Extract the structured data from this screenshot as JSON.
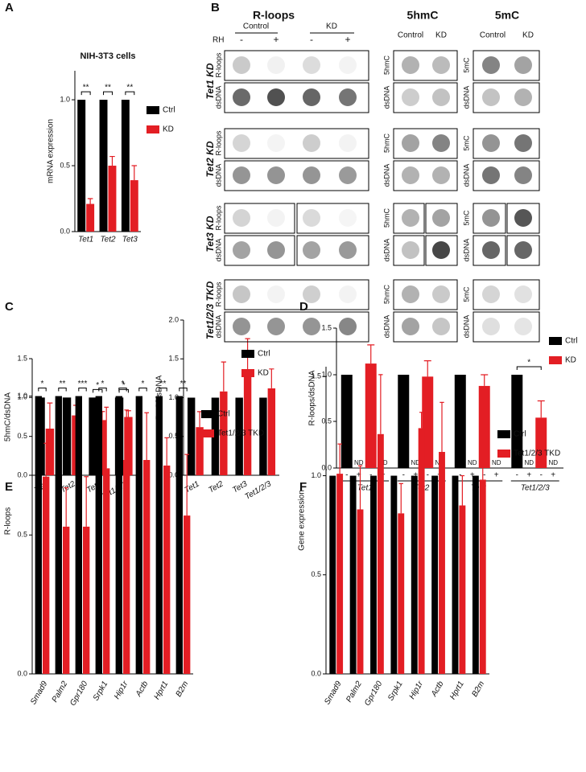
{
  "panel_labels": [
    "A",
    "B",
    "C",
    "D",
    "E",
    "F"
  ],
  "chart_data": [
    {
      "type": "bar",
      "title": "NIH-3T3 cells",
      "y_label": "mRNA expression",
      "categories": [
        "Tet1",
        "Tet2",
        "Tet3"
      ],
      "series": [
        {
          "name": "Ctrl",
          "color": "#000000",
          "values": [
            1,
            1,
            1
          ]
        },
        {
          "name": "KD",
          "color": "#e31e24",
          "values": [
            0.21,
            0.5,
            0.39
          ],
          "errors": [
            0.04,
            0.07,
            0.11
          ]
        }
      ],
      "annotations": [
        "**",
        "**",
        "**"
      ],
      "ylim": [
        0,
        1.22
      ],
      "yticks": [
        {
          "value": 0,
          "label": "0.0"
        },
        {
          "value": 0.5,
          "label": "0.5"
        },
        {
          "value": 1,
          "label": "1.0"
        }
      ]
    },
    {
      "type": "bar",
      "y_label": "5hmC/dsDNA",
      "categories": [
        "Tet1",
        "Tet2",
        "Tet3",
        "Tet1/2/3"
      ],
      "series": [
        {
          "color": "#000000",
          "values": [
            1,
            1,
            1,
            1
          ]
        },
        {
          "color": "#e31e24",
          "values": [
            0.6,
            0.77,
            0.71,
            0.75
          ],
          "errors": [
            0.33,
            0.13,
            0.11,
            0.08
          ]
        }
      ],
      "annotations": [
        null,
        null,
        "*",
        "*"
      ],
      "ylim": [
        0,
        1.5
      ],
      "yticks": [
        {
          "value": 0,
          "label": "0.0"
        },
        {
          "value": 0.5,
          "label": "0.5"
        },
        {
          "value": 1,
          "label": "1.0"
        },
        {
          "value": 1.5,
          "label": "1.5"
        }
      ]
    },
    {
      "type": "bar",
      "y_label": "5mC/dsDNA",
      "categories": [
        "Tet1",
        "Tet2",
        "Tet3",
        "Tet1/2/3"
      ],
      "series": [
        {
          "name": "Ctrl",
          "color": "#000000",
          "values": [
            1,
            1,
            1,
            1
          ]
        },
        {
          "name": "KD",
          "color": "#e31e24",
          "values": [
            0.62,
            1.08,
            1.33,
            1.12
          ],
          "errors": [
            0.2,
            0.38,
            0.43,
            0.25
          ]
        }
      ],
      "ylim": [
        0,
        2
      ],
      "yticks": [
        {
          "value": 0,
          "label": "0.0"
        },
        {
          "value": 0.5,
          "label": "0.5"
        },
        {
          "value": 1,
          "label": "1.0"
        },
        {
          "value": 1.5,
          "label": "1.5"
        },
        {
          "value": 2,
          "label": "2.0"
        }
      ]
    },
    {
      "type": "bar",
      "y_label": "R-loops/dsDNA",
      "categories": [
        "Tet1",
        "Tet2",
        "Tet3",
        "Tet1/2/3"
      ],
      "sub_axis_label": "RH",
      "sub_labels": [
        "-",
        "+",
        "-",
        "+"
      ],
      "nd_label": "ND",
      "series": [
        {
          "name": "Ctrl",
          "color": "#000000",
          "values": [
            1,
            1,
            1,
            1
          ]
        },
        {
          "name": "KD",
          "color": "#e31e24",
          "values": [
            1.12,
            0.98,
            0.88,
            0.54
          ],
          "errors": [
            0.2,
            0.17,
            0.12,
            0.18
          ]
        }
      ],
      "annotations": [
        null,
        null,
        null,
        "*"
      ],
      "ylim": [
        0,
        1.5
      ],
      "yticks": [
        {
          "value": 0,
          "label": "0.0"
        },
        {
          "value": 0.5,
          "label": "0.5"
        },
        {
          "value": 1,
          "label": "1.0"
        },
        {
          "value": 1.5,
          "label": "1.5"
        }
      ]
    },
    {
      "type": "bar",
      "y_label": "R-loops",
      "categories": [
        "Smad9",
        "Palm2",
        "Gpr180",
        "Srpk1",
        "Hip1r",
        "Actb",
        "Hprt1",
        "B2m"
      ],
      "series": [
        {
          "name": "Ctrl",
          "color": "#000000",
          "values": [
            1,
            1,
            1,
            1,
            1,
            1,
            1,
            1
          ]
        },
        {
          "name": "Tet1/2/3 TKD",
          "color": "#e31e24",
          "values": [
            0.71,
            0.53,
            0.53,
            0.74,
            0.77,
            0.77,
            0.75,
            0.57
          ],
          "errors": [
            0.12,
            0.14,
            0.18,
            0.22,
            0.18,
            0.17,
            0.1,
            0.22
          ]
        }
      ],
      "annotations": [
        "*",
        "**",
        "***",
        "*",
        "*",
        "*",
        "**",
        "**"
      ],
      "ylim": [
        0,
        1.1
      ],
      "yticks": [
        {
          "value": 0,
          "label": "0.0"
        },
        {
          "value": 0.5,
          "label": "0.5"
        },
        {
          "value": 1,
          "label": "1.0"
        }
      ]
    },
    {
      "type": "bar",
      "y_label": "Gene expression",
      "categories": [
        "Smad9",
        "Palm2",
        "Gpr180",
        "Srpk1",
        "Hip1r",
        "Actb",
        "Hprt1",
        "B2m"
      ],
      "series": [
        {
          "name": "Ctrl",
          "color": "#000000",
          "values": [
            1,
            1,
            1,
            1,
            1,
            1,
            1,
            1
          ]
        },
        {
          "name": "Tet1/2/3 TKD",
          "color": "#e31e24",
          "values": [
            1.01,
            0.83,
            1.21,
            0.81,
            1.24,
            1.12,
            0.85,
            0.98
          ],
          "errors": [
            0.15,
            0.22,
            0.3,
            0.15,
            0.08,
            0.25,
            0.15,
            0.08
          ]
        }
      ],
      "ylim": [
        0,
        1.55
      ],
      "yticks": [
        {
          "value": 0,
          "label": "0.0"
        },
        {
          "value": 0.5,
          "label": "0.5"
        },
        {
          "value": 1,
          "label": "1.0"
        },
        {
          "value": 1.5,
          "label": "1.5"
        }
      ]
    }
  ],
  "blot_panel": {
    "headers": [
      "R-loops",
      "5hmC",
      "5mC"
    ],
    "rloop_conditions": [
      "Control",
      "KD"
    ],
    "rh_label": "RH",
    "rh_signs": [
      "-",
      "+",
      "-",
      "+"
    ],
    "hmc_conditions": [
      "Control",
      "KD"
    ],
    "mc_conditions": [
      "Control",
      "KD"
    ],
    "groups": [
      {
        "label": "Tet1 KD",
        "rloop_rows": [
          "R-loops",
          "dsDNA"
        ],
        "hmc_rows": [
          "5hmC",
          "dsDNA"
        ],
        "mc_rows": [
          "5mC",
          "dsDNA"
        ]
      },
      {
        "label": "Tet2 KD",
        "rloop_rows": [
          "R-loops",
          "dsDNA"
        ],
        "hmc_rows": [
          "5hmC",
          "dsDNA"
        ],
        "mc_rows": [
          "5mC",
          "dsDNA"
        ]
      },
      {
        "label": "Tet3 KD",
        "rloop_rows": [
          "R-loops",
          "dsDNA"
        ],
        "hmc_rows": [
          "5hmC",
          "dsDNA"
        ],
        "mc_rows": [
          "5mC",
          "dsDNA"
        ]
      },
      {
        "label": "Tet1/2/3 TKD",
        "rloop_rows": [
          "R-loops",
          "dsDNA"
        ],
        "hmc_rows": [
          "5hmC",
          "dsDNA"
        ],
        "mc_rows": [
          "5mC",
          "dsDNA"
        ]
      }
    ]
  }
}
